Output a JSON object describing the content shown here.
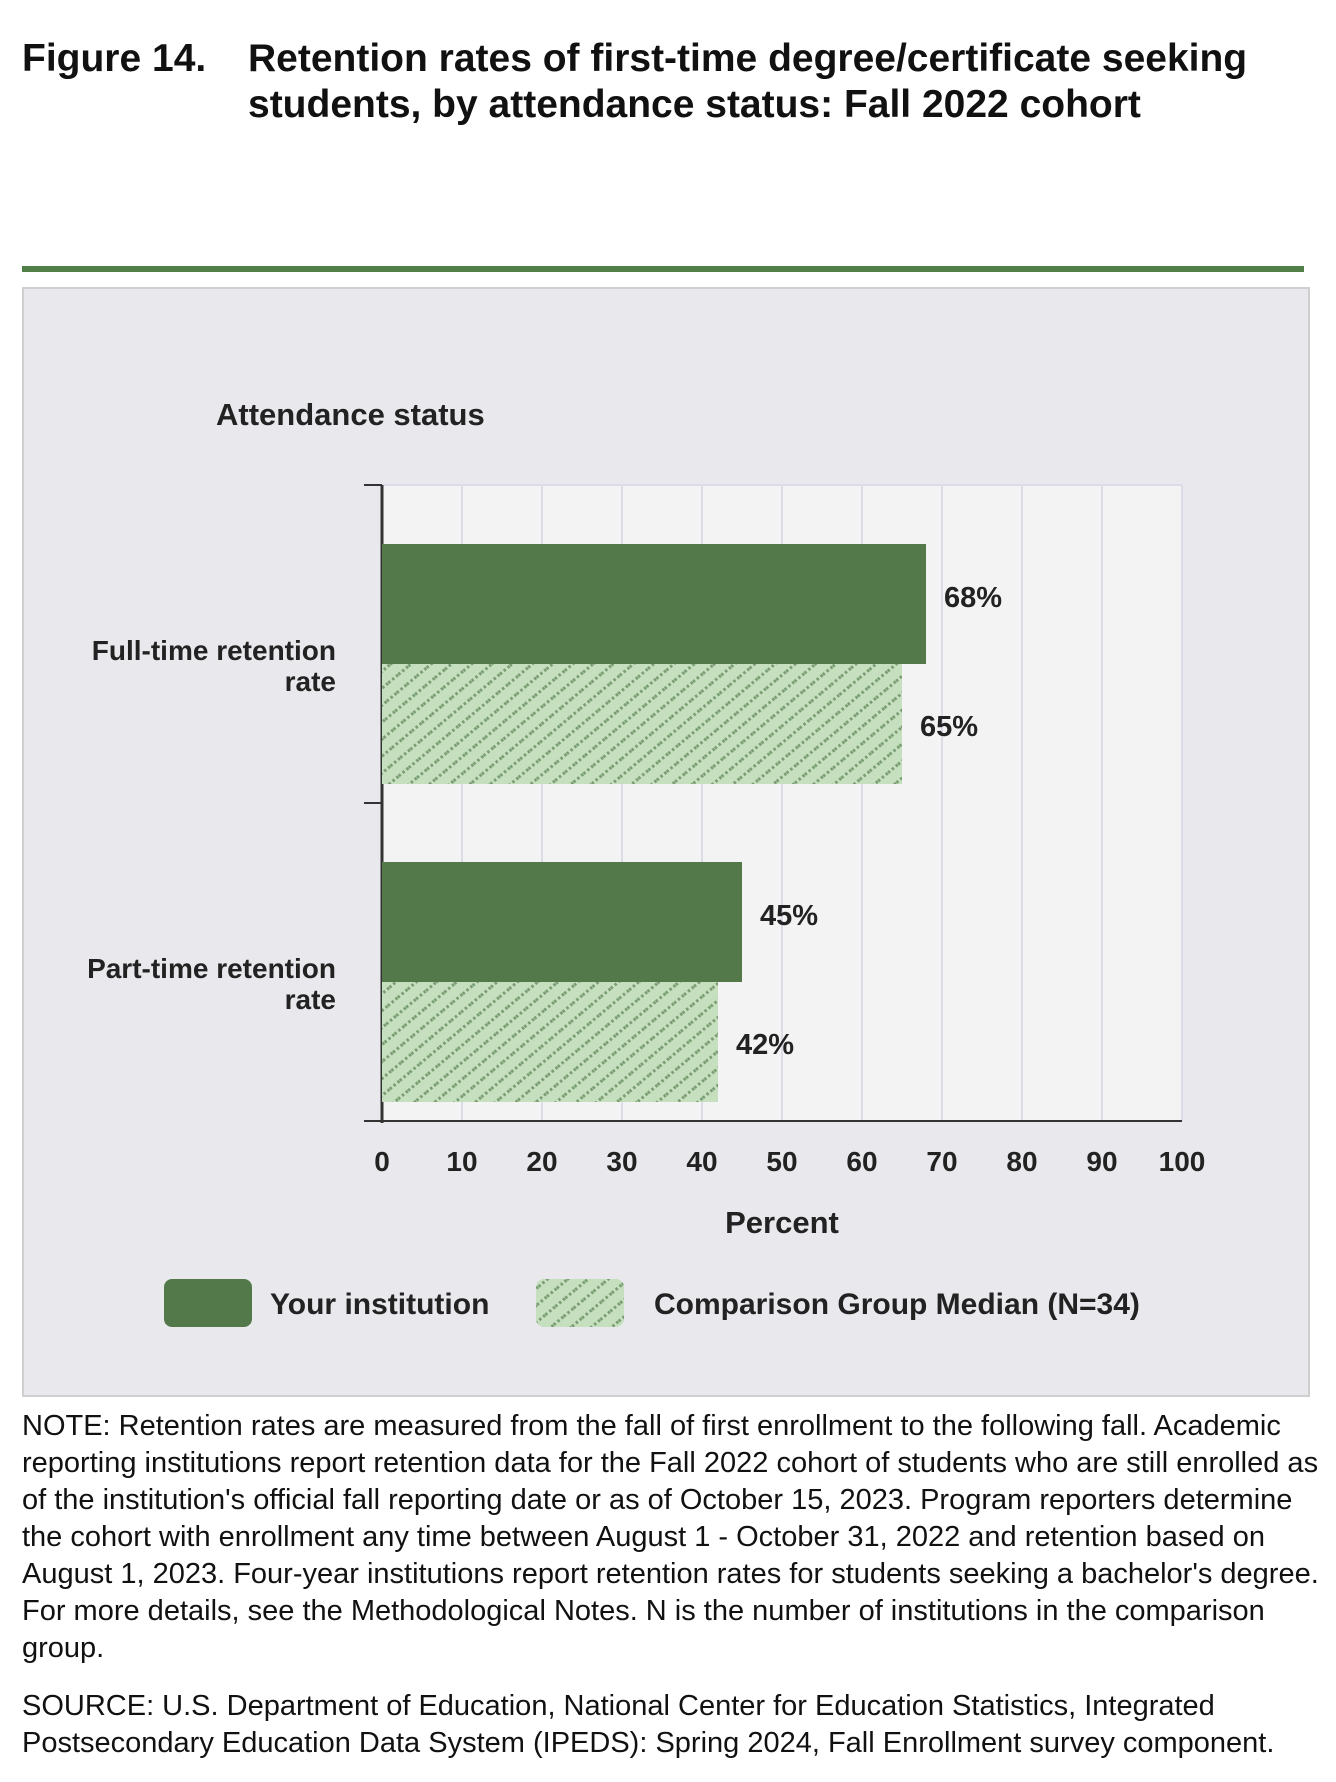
{
  "figure": {
    "number": "Figure 14.",
    "title": "Retention rates of first-time degree/certificate seeking students, by attendance status: Fall 2022 cohort"
  },
  "colors": {
    "accent_rule": "#508048",
    "institution": "#53794b",
    "comparison_fill": "#c5dfbf",
    "comparison_hatch": "#7a9e72",
    "plot_bg": "#f3f3f3",
    "grid": "#dcdce8"
  },
  "chart_data": {
    "type": "bar",
    "orientation": "horizontal",
    "y_axis_title": "Attendance status",
    "categories": [
      "Full-time retention rate",
      "Part-time retention rate"
    ],
    "category_lines": [
      [
        "Full-time retention",
        "rate"
      ],
      [
        "Part-time retention",
        "rate"
      ]
    ],
    "series": [
      {
        "name": "Your institution",
        "values": [
          68,
          45
        ],
        "labels": [
          "68%",
          "45%"
        ]
      },
      {
        "name": "Comparison Group Median (N=34)",
        "values": [
          65,
          42
        ],
        "labels": [
          "65%",
          "42%"
        ]
      }
    ],
    "xlabel": "Percent",
    "xlim": [
      0,
      100
    ],
    "xticks": [
      0,
      10,
      20,
      30,
      40,
      50,
      60,
      70,
      80,
      90,
      100
    ],
    "tick_labels": [
      "0",
      "10",
      "20",
      "30",
      "40",
      "50",
      "60",
      "70",
      "80",
      "90",
      "100"
    ],
    "grid": true,
    "legend": {
      "position": "bottom",
      "items": [
        "Your institution",
        "Comparison Group Median (N=34)"
      ]
    }
  },
  "note": "NOTE: Retention rates are measured from the fall of first enrollment to the following fall. Academic reporting institutions report retention data for the Fall 2022 cohort of students who are still enrolled as of the institution's official fall reporting date or as of October 15, 2023. Program reporters determine the cohort with enrollment any time between August 1 - October 31, 2022 and retention based on August 1, 2023. Four-year institutions report retention rates for students seeking a bachelor's degree. For more details, see the Methodological Notes. N is the number of institutions in the comparison group.",
  "source": "SOURCE: U.S. Department of Education, National Center for Education Statistics, Integrated Postsecondary Education Data System (IPEDS): Spring 2024, Fall Enrollment survey component."
}
